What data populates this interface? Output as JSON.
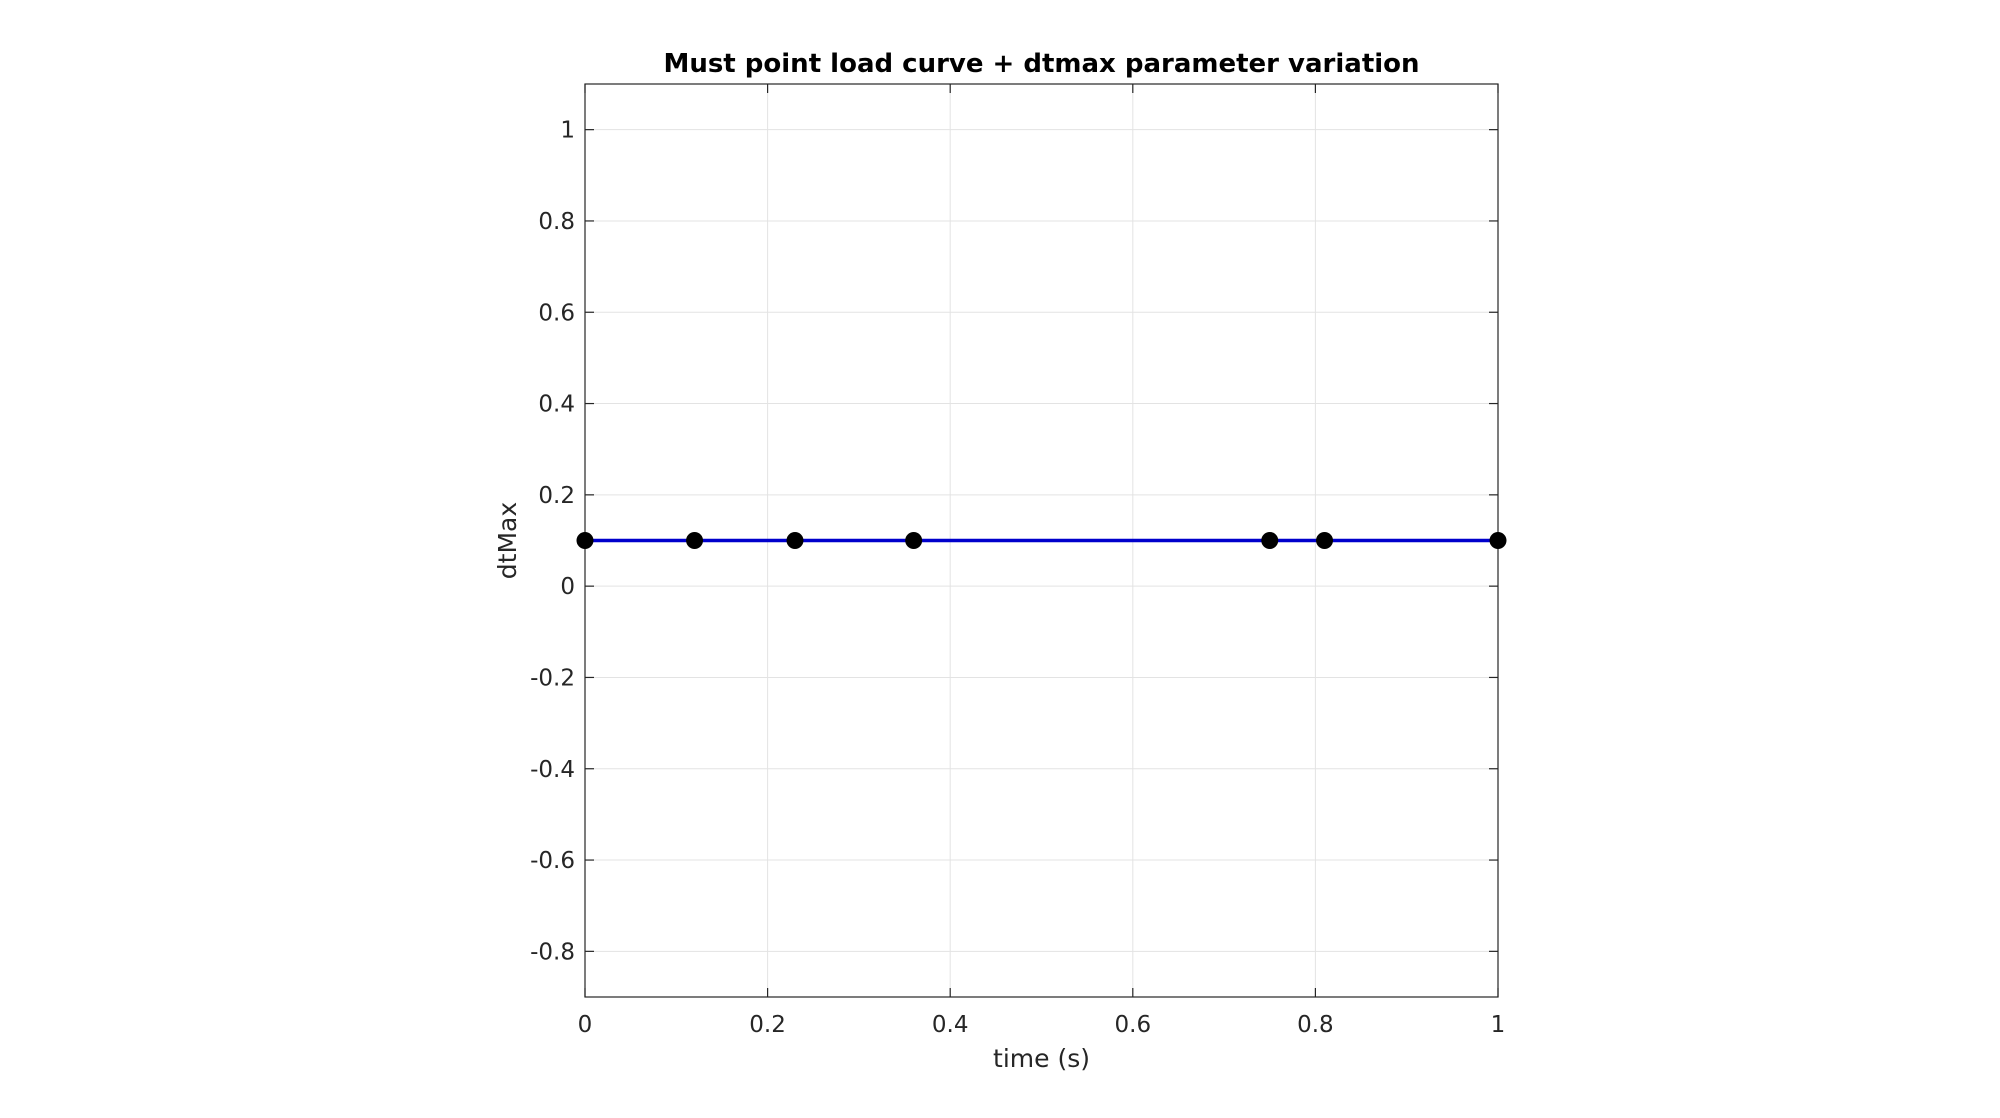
{
  "chart_data": {
    "type": "line",
    "title": "Must point load curve + dtmax parameter variation",
    "xlabel": "time (s)",
    "ylabel": "dtMax",
    "xlim": [
      0,
      1
    ],
    "ylim": [
      -0.9,
      1.1
    ],
    "xticks": [
      0,
      0.2,
      0.4,
      0.6,
      0.8,
      1
    ],
    "xtick_labels": [
      "0",
      "0.2",
      "0.4",
      "0.6",
      "0.8",
      "1"
    ],
    "yticks": [
      -0.8,
      -0.6,
      -0.4,
      -0.2,
      0,
      0.2,
      0.4,
      0.6,
      0.8,
      1
    ],
    "ytick_labels": [
      "-0.8",
      "-0.6",
      "-0.4",
      "-0.2",
      "0",
      "0.2",
      "0.4",
      "0.6",
      "0.8",
      "1"
    ],
    "grid": true,
    "series": [
      {
        "x": [
          0,
          0.12,
          0.23,
          0.36,
          0.75,
          0.81,
          1
        ],
        "y": [
          0.1,
          0.1,
          0.1,
          0.1,
          0.1,
          0.1,
          0.1
        ],
        "line_color": "#0000cc",
        "marker_color": "#000000",
        "marker": "circle"
      }
    ]
  }
}
